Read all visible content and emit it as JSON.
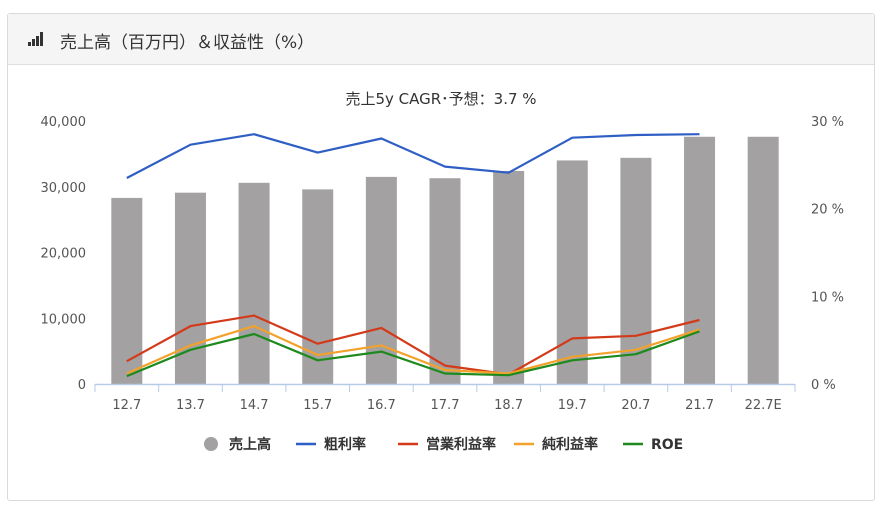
{
  "header": {
    "title": "売上高（百万円）＆収益性（%）",
    "icon": "bar-signal-icon"
  },
  "chart_data": {
    "type": "bar+line",
    "title": "売上5y CAGR･予想：3.7 %",
    "categories": [
      "12.7",
      "13.7",
      "14.7",
      "15.7",
      "16.7",
      "17.7",
      "18.7",
      "19.7",
      "20.7",
      "21.7",
      "22.7E"
    ],
    "left_axis": {
      "ylim": [
        0,
        40000
      ],
      "ticks": [
        "0",
        "10,000",
        "20,000",
        "30,000",
        "40,000"
      ]
    },
    "right_axis": {
      "ylim": [
        0,
        30
      ],
      "ticks": [
        "0 %",
        "10 %",
        "20 %",
        "30 %"
      ]
    },
    "bars": {
      "name": "売上高",
      "color": "#a3a1a1",
      "values": [
        28300,
        29100,
        30600,
        29600,
        31500,
        31300,
        32400,
        34000,
        34400,
        37600,
        37600
      ]
    },
    "series": [
      {
        "name": "粗利率",
        "color": "#2f5fc4",
        "values": [
          23.5,
          27.3,
          28.5,
          26.4,
          28.0,
          24.8,
          24.1,
          28.1,
          28.4,
          28.5,
          null
        ]
      },
      {
        "name": "営業利益率",
        "color": "#d33a1a",
        "values": [
          2.6,
          6.6,
          7.8,
          4.6,
          6.4,
          2.1,
          1.1,
          5.2,
          5.5,
          7.3,
          null
        ]
      },
      {
        "name": "純利益率",
        "color": "#f2a12b",
        "values": [
          1.2,
          4.4,
          6.6,
          3.3,
          4.4,
          1.6,
          1.2,
          3.1,
          3.9,
          6.2,
          null
        ]
      },
      {
        "name": "ROE",
        "color": "#1e8a1e",
        "values": [
          0.9,
          3.9,
          5.7,
          2.7,
          3.7,
          1.2,
          1.0,
          2.7,
          3.4,
          6.0,
          null
        ]
      }
    ],
    "legend": [
      {
        "name": "売上高",
        "color": "#a3a1a1",
        "marker": "circle"
      },
      {
        "name": "粗利率",
        "color": "#2f5fc4",
        "marker": "line"
      },
      {
        "name": "営業利益率",
        "color": "#d33a1a",
        "marker": "line"
      },
      {
        "name": "純利益率",
        "color": "#f2a12b",
        "marker": "line"
      },
      {
        "name": "ROE",
        "color": "#1e8a1e",
        "marker": "line"
      }
    ],
    "legend_position": "bottom",
    "grid": false
  }
}
